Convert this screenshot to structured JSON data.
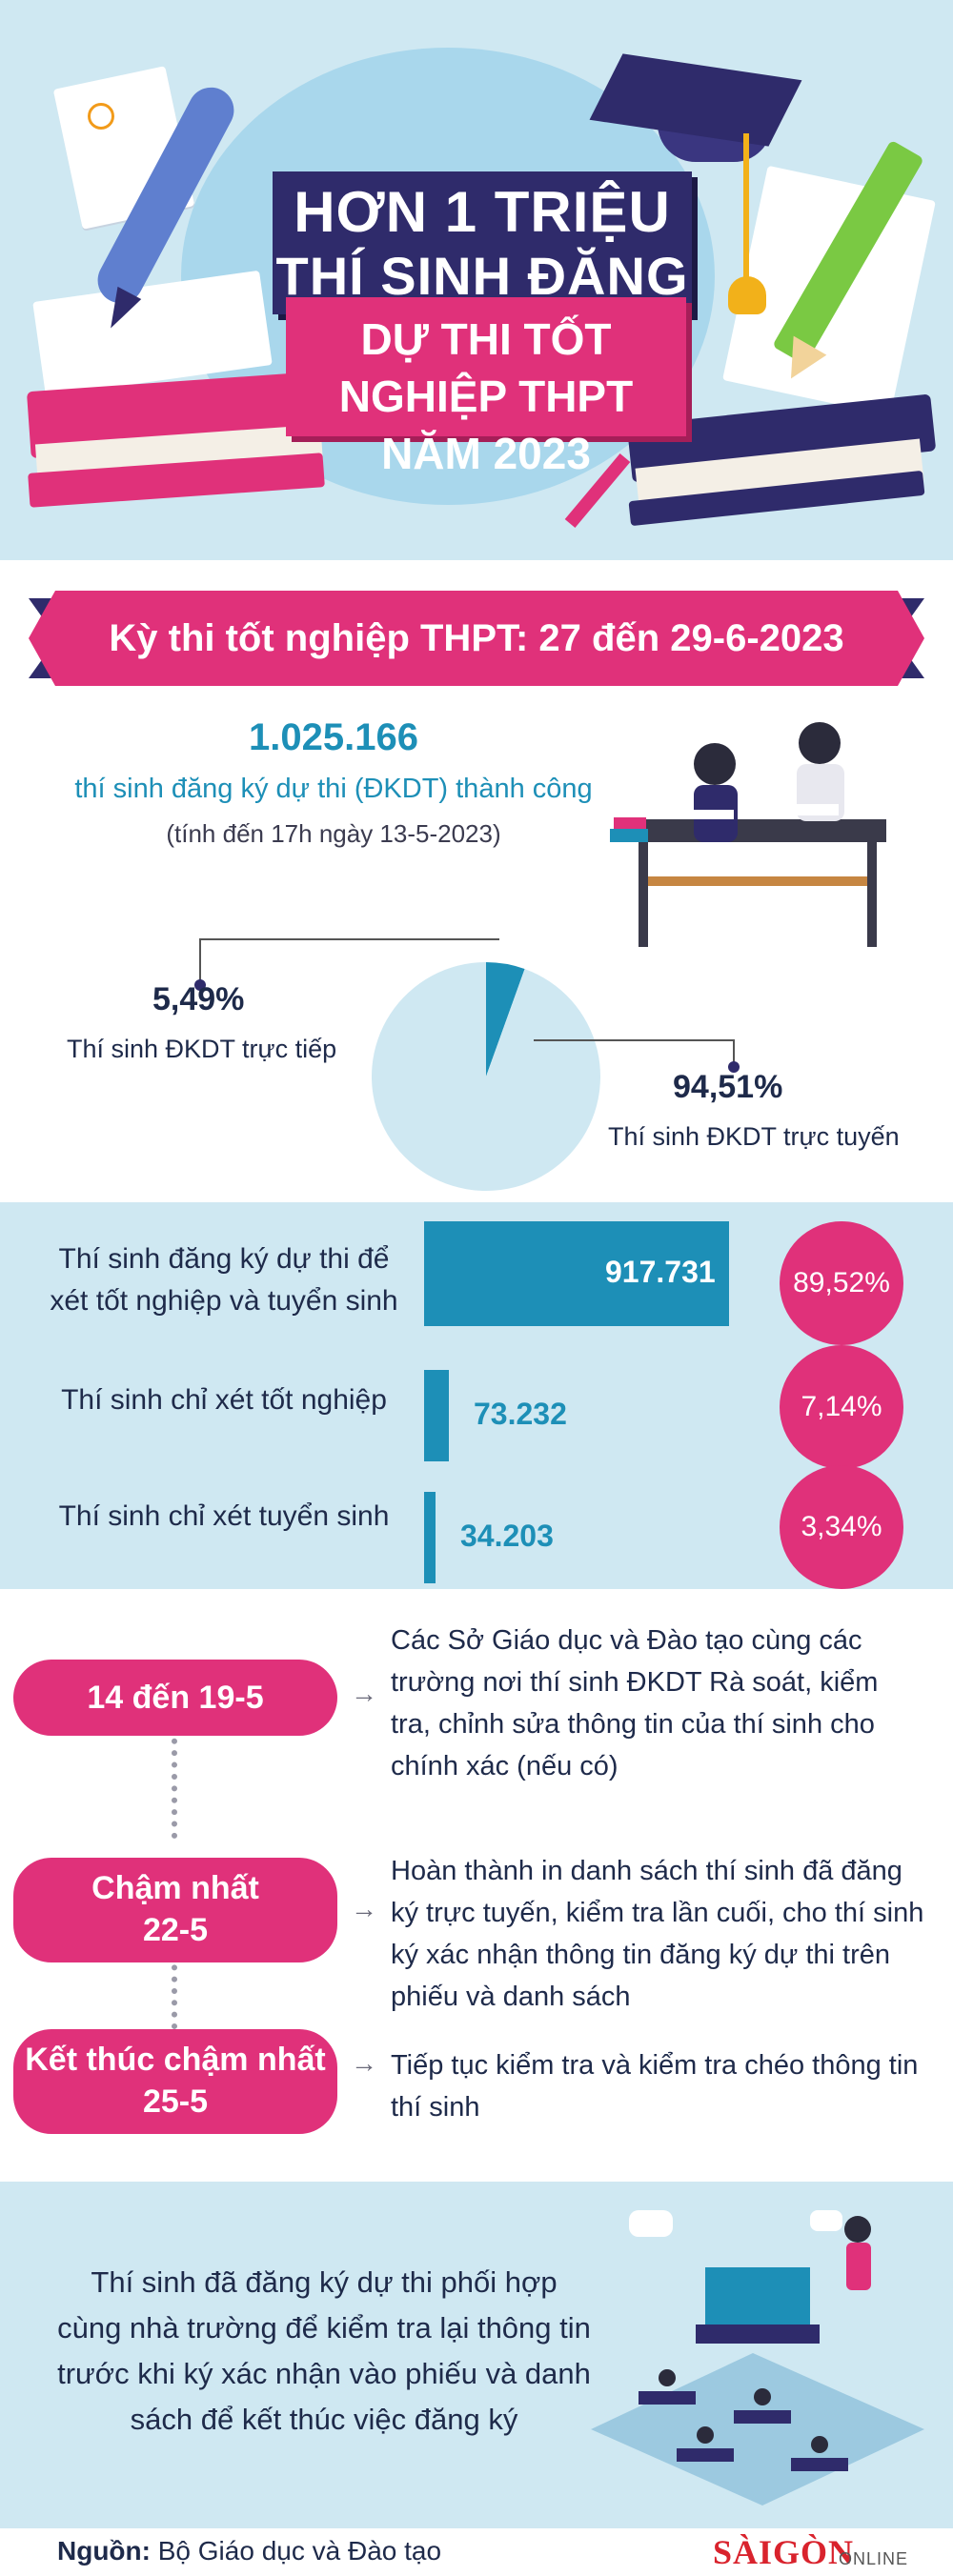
{
  "title": {
    "line1": "HƠN 1 TRIỆU",
    "line2": "THÍ SINH ĐĂNG KÝ",
    "line3": "DỰ THI TỐT NGHIỆP THPT",
    "line4": "NĂM 2023"
  },
  "banner": "Kỳ thi tốt nghiệp THPT: 27 đến 29-6-2023",
  "registration": {
    "total": "1.025.166",
    "total_label": "thí sinh đăng ký dự thi (ĐKDT) thành công",
    "as_of": "(tính đến 17h ngày 13-5-2023)"
  },
  "chart_data": [
    {
      "type": "pie",
      "categories": [
        "Thí sinh ĐKDT trực tiếp",
        "Thí sinh ĐKDT trực tuyến"
      ],
      "values": [
        5.49,
        94.51
      ],
      "labels": [
        "5,49%",
        "94,51%"
      ],
      "colors": [
        "#1d8fb7",
        "#cfe8f2"
      ]
    },
    {
      "type": "bar",
      "categories": [
        "Thí sinh đăng ký dự thi để xét tốt nghiệp và tuyển sinh",
        "Thí sinh chỉ xét tốt nghiệp",
        "Thí sinh chỉ xét tuyển sinh"
      ],
      "values": [
        917731,
        73232,
        34203
      ],
      "value_labels": [
        "917.731",
        "73.232",
        "34.203"
      ],
      "percent_labels": [
        "89,52%",
        "7,14%",
        "3,34%"
      ],
      "colors": {
        "bar": "#1d8fb7",
        "circle": "#e0317a"
      }
    }
  ],
  "bars": [
    {
      "label_line1": "Thí sinh đăng ký dự thi để",
      "label_line2": "xét tốt nghiệp và tuyển sinh",
      "value": "917.731",
      "percent": "89,52%"
    },
    {
      "label_line1": "Thí sinh chỉ xét tốt nghiệp",
      "label_line2": "",
      "value": "73.232",
      "percent": "7,14%"
    },
    {
      "label_line1": "Thí sinh chỉ xét tuyển sinh",
      "label_line2": "",
      "value": "34.203",
      "percent": "3,34%"
    }
  ],
  "timeline": [
    {
      "date_line1": "14 đến 19-5",
      "date_line2": "",
      "text": "Các Sở Giáo dục và Đào tạo cùng các trường nơi thí sinh ĐKDT Rà soát, kiểm tra, chỉnh sửa thông tin của thí sinh cho chính xác (nếu có)"
    },
    {
      "date_line1": "Chậm nhất",
      "date_line2": "22-5",
      "text": "Hoàn thành in danh sách thí sinh đã đăng ký trực tuyến, kiểm tra lần cuối, cho thí sinh ký xác nhận thông tin đăng ký dự thi trên phiếu và danh sách"
    },
    {
      "date_line1": "Kết thúc chậm nhất",
      "date_line2": "25-5",
      "text": "Tiếp tục kiểm tra và kiểm tra chéo thông tin thí sinh"
    }
  ],
  "bottom": {
    "text": "Thí sinh đã đăng ký dự thi phối hợp cùng nhà trường để kiểm tra lại thông tin trước khi ký xác nhận vào phiếu và danh sách để kết thúc việc đăng ký"
  },
  "source": {
    "label": "Nguồn:",
    "value": "Bộ Giáo dục và Đào tạo"
  },
  "logo": {
    "name": "SÀIGÒN",
    "suffix": "ONLINE"
  },
  "colors": {
    "navy": "#2f2b6b",
    "pink": "#e0317a",
    "teal": "#1d8fb7",
    "light_blue": "#cfe8f2"
  }
}
